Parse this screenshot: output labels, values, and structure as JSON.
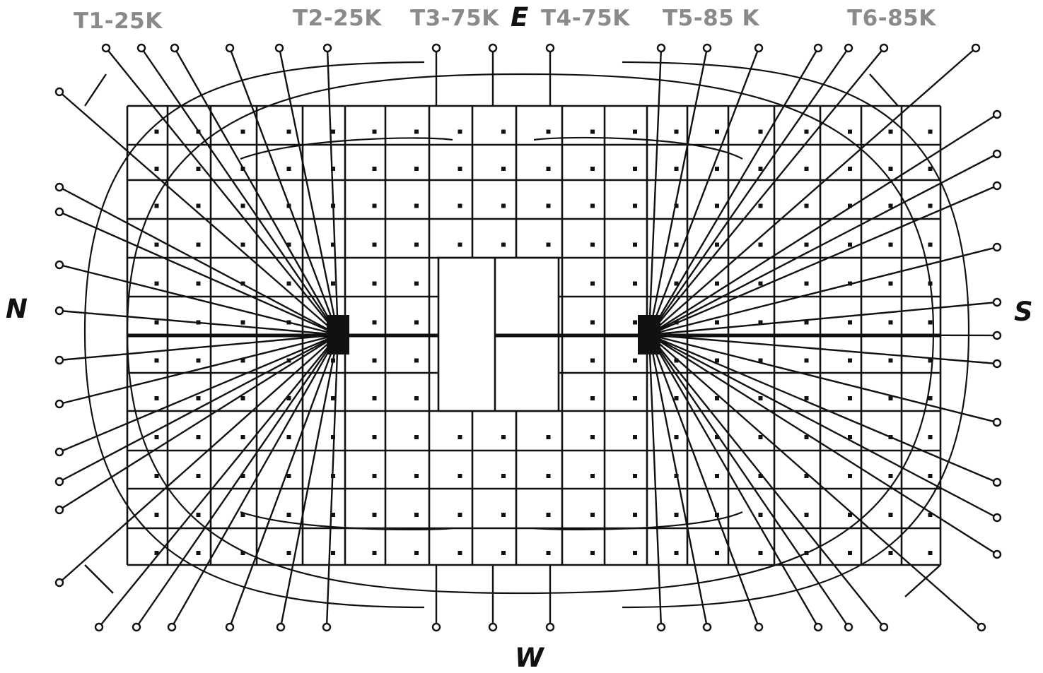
{
  "tower_labels": [
    "T1-25K",
    "T2-25K",
    "T3-75K",
    "T4-75K",
    "T5-85 K",
    "T6-85K"
  ],
  "directions": {
    "north": "N",
    "east": "E",
    "south": "S",
    "west": "W"
  }
}
